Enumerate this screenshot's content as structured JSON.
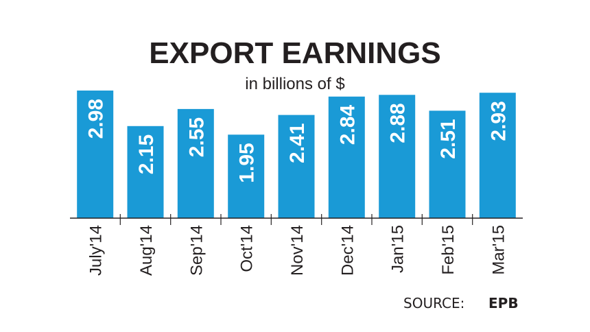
{
  "chart_data": {
    "type": "bar",
    "title": "EXPORT EARNINGS",
    "subtitle": "in billions of $",
    "categories": [
      "July'14",
      "Aug'14",
      "Sep'14",
      "Oct'14",
      "Nov'14",
      "Dec'14",
      "Jan'15",
      "Feb'15",
      "Mar'15"
    ],
    "values": [
      2.98,
      2.15,
      2.55,
      1.95,
      2.41,
      2.84,
      2.88,
      2.51,
      2.93
    ],
    "value_labels": [
      "2.98",
      "2.15",
      "2.55",
      "1.95",
      "2.41",
      "2.84",
      "2.88",
      "2.51",
      "2.93"
    ],
    "xlabel": "",
    "ylabel": "",
    "ylim": [
      0,
      3
    ],
    "grid": false,
    "legend": "none",
    "bar_color": "#1a9ad6",
    "axis_color": "#231f20"
  },
  "source": {
    "label": "SOURCE:",
    "value": "EPB"
  }
}
